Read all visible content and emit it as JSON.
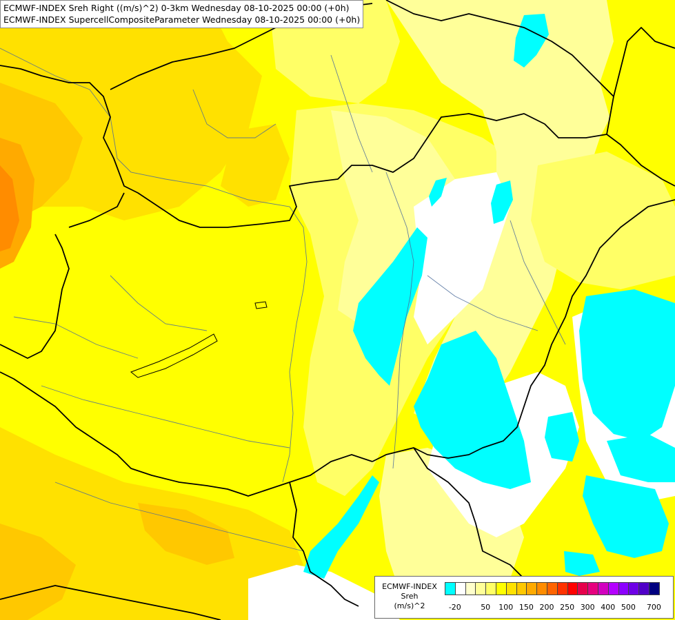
{
  "titles": {
    "line1": "ECMWF-INDEX Sreh Right ((m/s)^2) 0-3km Wednesday 08-10-2025 00:00 (+0h)",
    "line2": "ECMWF-INDEX SupercellCompositeParameter Wednesday 08-10-2025 00:00 (+0h)"
  },
  "legend": {
    "title1": "ECMWF-INDEX",
    "title2": "Sreh",
    "title3": "(m/s)^2",
    "colors": [
      "#00ffff",
      "#ffffff",
      "#ffffcc",
      "#ffff99",
      "#ffff66",
      "#ffff00",
      "#ffe100",
      "#ffc800",
      "#ffaa00",
      "#ff8c00",
      "#ff6400",
      "#ff3200",
      "#ff0000",
      "#e6004b",
      "#e6007f",
      "#d200bf",
      "#b400ff",
      "#8c00ff",
      "#6e00e6",
      "#5000c8",
      "#000080"
    ],
    "labels": [
      "-20",
      "50",
      "100",
      "150",
      "200",
      "250",
      "300",
      "400",
      "500",
      "700"
    ]
  }
}
